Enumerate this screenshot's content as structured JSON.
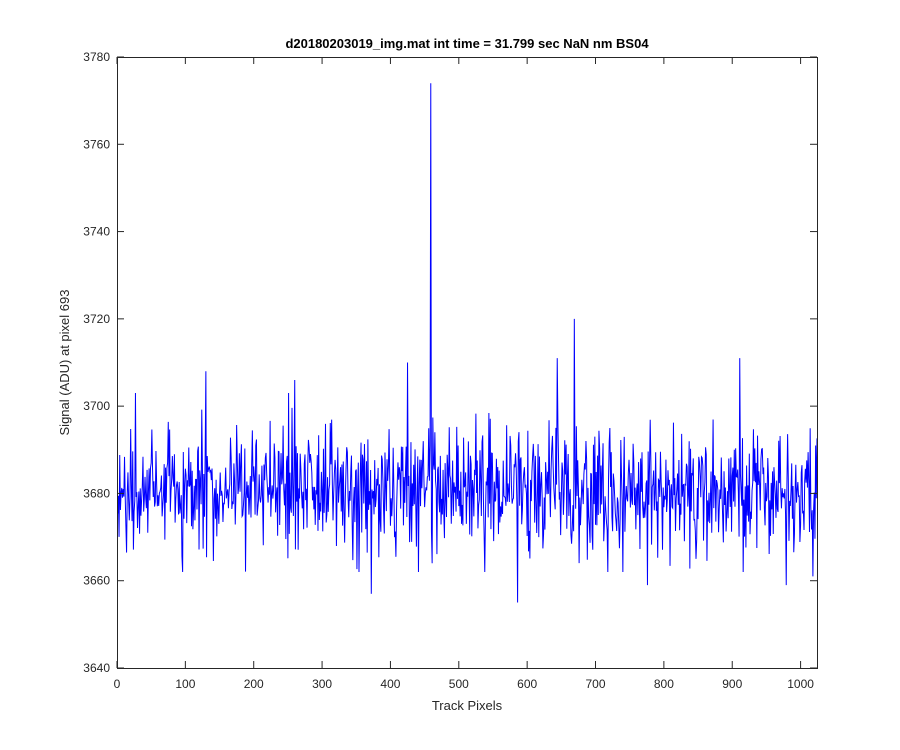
{
  "chart_data": {
    "type": "line",
    "title": "d20180203019_img.mat int time = 31.799 sec  NaN nm BS04",
    "xlabel": "Track Pixels",
    "ylabel": "Signal (ADU) at pixel 693",
    "xlim": [
      0,
      1024
    ],
    "ylim": [
      3640,
      3780
    ],
    "xticks": [
      0,
      100,
      200,
      300,
      400,
      500,
      600,
      700,
      800,
      900,
      1000
    ],
    "yticks": [
      3640,
      3660,
      3680,
      3700,
      3720,
      3740,
      3760,
      3780
    ],
    "grid": false,
    "series": [
      {
        "color": "#0000ff",
        "baseline_mean": 3681,
        "baseline_noise_range": [
          3662,
          3703
        ],
        "x_start": 0,
        "x_end": 1024,
        "x_step": 1,
        "notable_points": [
          {
            "x": 27,
            "y": 3703
          },
          {
            "x": 130,
            "y": 3708
          },
          {
            "x": 260,
            "y": 3706
          },
          {
            "x": 372,
            "y": 3657
          },
          {
            "x": 425,
            "y": 3710
          },
          {
            "x": 459,
            "y": 3774
          },
          {
            "x": 461,
            "y": 3664
          },
          {
            "x": 586,
            "y": 3655
          },
          {
            "x": 644,
            "y": 3711
          },
          {
            "x": 669,
            "y": 3720
          },
          {
            "x": 776,
            "y": 3659
          },
          {
            "x": 911,
            "y": 3711
          },
          {
            "x": 979,
            "y": 3659
          },
          {
            "x": 1018,
            "y": 3661
          }
        ]
      }
    ]
  }
}
